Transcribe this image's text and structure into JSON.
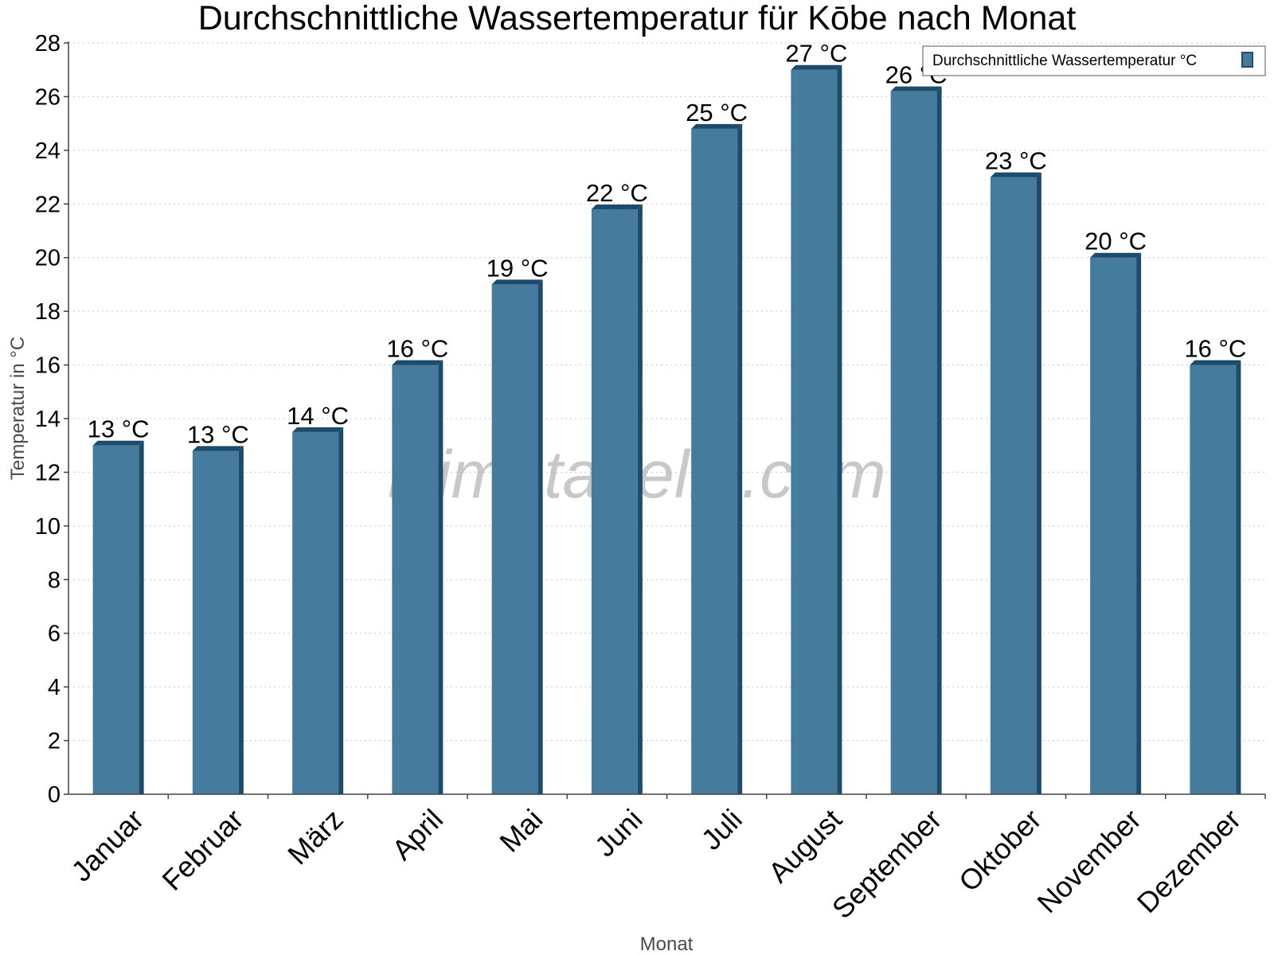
{
  "chart_data": {
    "type": "bar",
    "title": "Durchschnittliche Wassertemperatur für Kōbe nach Monat",
    "xlabel": "Monat",
    "ylabel": "Temperatur in °C",
    "ylim": [
      0,
      28
    ],
    "yticks": [
      0,
      2,
      4,
      6,
      8,
      10,
      12,
      14,
      16,
      18,
      20,
      22,
      24,
      26,
      28
    ],
    "grid": true,
    "legend_position": "top-right",
    "watermark": "klimatabelle.com",
    "categories": [
      "Januar",
      "Februar",
      "März",
      "April",
      "Mai",
      "Juni",
      "Juli",
      "August",
      "September",
      "Oktober",
      "November",
      "Dezember"
    ],
    "series": [
      {
        "name": "Durchschnittliche Wassertemperatur °C",
        "color": "#457b9d",
        "dark_color": "#1d4b6b",
        "values": [
          13.0,
          12.8,
          13.5,
          16.0,
          19.0,
          21.8,
          24.8,
          27.0,
          26.2,
          23.0,
          20.0,
          16.0
        ],
        "labels": [
          "13 °C",
          "13 °C",
          "14 °C",
          "16 °C",
          "19 °C",
          "22 °C",
          "25 °C",
          "27 °C",
          "26 °C",
          "23 °C",
          "20 °C",
          "16 °C"
        ]
      }
    ]
  }
}
